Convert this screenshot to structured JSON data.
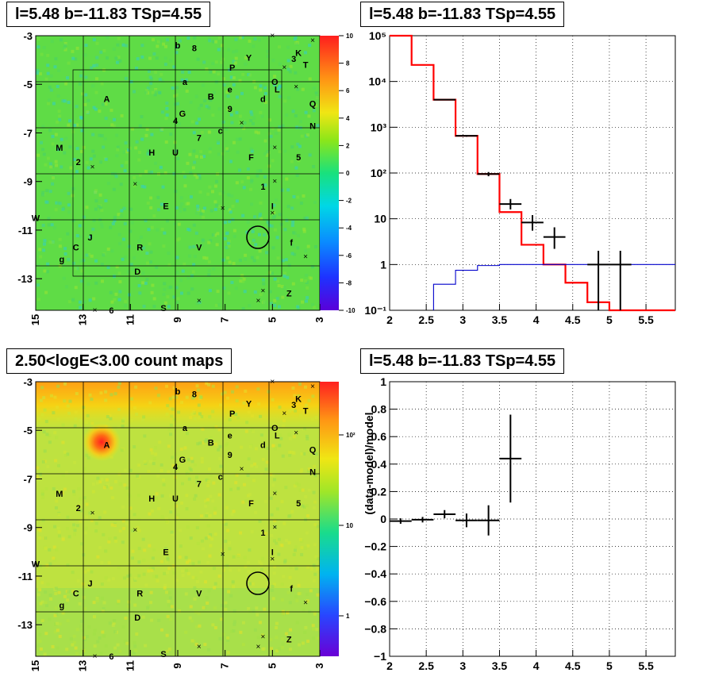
{
  "panels": {
    "top_left": {
      "title": "l=5.48 b=-11.83 TSp=4.55"
    },
    "top_right": {
      "title": "l=5.48 b=-11.83 TSp=4.55"
    },
    "bottom_left": {
      "title": "2.50<logE<3.00 count maps"
    },
    "bottom_right": {
      "title": "l=5.48 b=-11.83 TSp=4.55"
    }
  },
  "chart_data": [
    {
      "id": "residual_map",
      "type": "heatmap",
      "title": "l=5.48 b=-11.83 TSp=4.55",
      "x_ticks": [
        "15",
        "13",
        "11",
        "9",
        "7",
        "5",
        "3"
      ],
      "y_ticks": [
        "-3",
        "-5",
        "-7",
        "-9",
        "-11",
        "-13"
      ],
      "xlim": [
        15,
        3
      ],
      "ylim": [
        -14.3,
        -3
      ],
      "palette_ticks": [
        "10",
        "8",
        "6",
        "4",
        "2",
        "0",
        "-2",
        "-4",
        "-6",
        "-8",
        "-10"
      ],
      "zlim": [
        -10,
        10
      ],
      "source_labels": [
        {
          "t": "b",
          "l": 9.0,
          "b": -3.4
        },
        {
          "t": "8",
          "l": 8.3,
          "b": -3.5
        },
        {
          "t": "Y",
          "l": 6.0,
          "b": -3.9
        },
        {
          "t": "P",
          "l": 6.7,
          "b": -4.3
        },
        {
          "t": "K",
          "l": 3.9,
          "b": -3.7
        },
        {
          "t": "3",
          "l": 4.1,
          "b": -3.95
        },
        {
          "t": "T",
          "l": 3.6,
          "b": -4.2
        },
        {
          "t": "a",
          "l": 8.7,
          "b": -4.9
        },
        {
          "t": "O",
          "l": 4.9,
          "b": -4.9
        },
        {
          "t": "L",
          "l": 4.8,
          "b": -5.2
        },
        {
          "t": "e",
          "l": 6.8,
          "b": -5.2
        },
        {
          "t": "A",
          "l": 12.0,
          "b": -5.6
        },
        {
          "t": "B",
          "l": 7.6,
          "b": -5.5
        },
        {
          "t": "d",
          "l": 5.4,
          "b": -5.6
        },
        {
          "t": "Q",
          "l": 3.3,
          "b": -5.8
        },
        {
          "t": "G",
          "l": 8.8,
          "b": -6.2
        },
        {
          "t": "9",
          "l": 6.8,
          "b": -6.0
        },
        {
          "t": "4",
          "l": 9.1,
          "b": -6.5
        },
        {
          "t": "N",
          "l": 3.3,
          "b": -6.7
        },
        {
          "t": "c",
          "l": 7.2,
          "b": -6.9
        },
        {
          "t": "7",
          "l": 8.1,
          "b": -7.2
        },
        {
          "t": "M",
          "l": 14.0,
          "b": -7.6
        },
        {
          "t": "H",
          "l": 10.1,
          "b": -7.8
        },
        {
          "t": "U",
          "l": 9.1,
          "b": -7.8
        },
        {
          "t": "F",
          "l": 5.9,
          "b": -8.0
        },
        {
          "t": "5",
          "l": 3.9,
          "b": -8.0
        },
        {
          "t": "2",
          "l": 13.2,
          "b": -8.2
        },
        {
          "t": "1",
          "l": 5.4,
          "b": -9.2
        },
        {
          "t": "E",
          "l": 9.5,
          "b": -10.0
        },
        {
          "t": "I",
          "l": 5.0,
          "b": -10.0
        },
        {
          "t": "W",
          "l": 15.0,
          "b": -10.5
        },
        {
          "t": "J",
          "l": 12.7,
          "b": -11.3
        },
        {
          "t": "C",
          "l": 13.3,
          "b": -11.7
        },
        {
          "t": "R",
          "l": 10.6,
          "b": -11.7
        },
        {
          "t": "V",
          "l": 8.1,
          "b": -11.7
        },
        {
          "t": "f",
          "l": 4.2,
          "b": -11.5
        },
        {
          "t": "g",
          "l": 13.9,
          "b": -12.2
        },
        {
          "t": "D",
          "l": 10.7,
          "b": -12.7
        },
        {
          "t": "Z",
          "l": 4.3,
          "b": -13.6
        },
        {
          "t": "S",
          "l": 9.6,
          "b": -14.2
        },
        {
          "t": "6",
          "l": 11.8,
          "b": -14.3
        }
      ],
      "x_markers": [
        {
          "l": 5.0,
          "b": -3.0
        },
        {
          "l": 4.5,
          "b": -4.3
        },
        {
          "l": 4.0,
          "b": -5.1
        },
        {
          "l": 6.3,
          "b": -6.6
        },
        {
          "l": 4.9,
          "b": -7.6
        },
        {
          "l": 12.6,
          "b": -8.4
        },
        {
          "l": 4.9,
          "b": -9.0
        },
        {
          "l": 10.8,
          "b": -9.1
        },
        {
          "l": 7.1,
          "b": -10.1
        },
        {
          "l": 5.0,
          "b": -10.3
        },
        {
          "l": 3.6,
          "b": -12.1
        },
        {
          "l": 5.6,
          "b": -13.9
        },
        {
          "l": 8.1,
          "b": -13.9
        },
        {
          "l": 12.5,
          "b": -14.3
        },
        {
          "l": 5.4,
          "b": -13.5
        },
        {
          "l": 3.3,
          "b": -3.2
        }
      ],
      "circle": {
        "l": 5.48,
        "b": -11.83,
        "r": 0.5
      }
    },
    {
      "id": "spectrum",
      "type": "line",
      "title": "l=5.48 b=-11.83 TSp=4.55",
      "log_y": true,
      "xlim": [
        2,
        5.9
      ],
      "ylim": [
        0.1,
        100000
      ],
      "x_ticks": [
        2,
        2.5,
        3,
        3.5,
        4,
        4.5,
        5,
        5.5
      ],
      "x_tick_labels": [
        "2",
        "2.5",
        "3",
        "3.5",
        "4",
        "4.5",
        "5",
        "5.5"
      ],
      "y_ticks": [
        0.1,
        1,
        10,
        100,
        1000,
        10000,
        100000
      ],
      "y_tick_labels": [
        "10⁻¹",
        "1",
        "10",
        "10²",
        "10³",
        "10⁴",
        "10⁵"
      ],
      "grid": true,
      "series": [
        {
          "color": "#ff0000",
          "edges": [
            2.0,
            2.3,
            2.6,
            2.9,
            3.2,
            3.5,
            3.8,
            4.1,
            4.4,
            4.7,
            5.0,
            5.9
          ],
          "values": [
            100000,
            23000,
            4000,
            650,
            95,
            14,
            2.7,
            1.0,
            0.4,
            0.15,
            0.1
          ]
        },
        {
          "color": "#0000cc",
          "edges": [
            2.6,
            2.9,
            3.2,
            3.5,
            5.9
          ],
          "values": [
            0.37,
            0.75,
            0.95,
            1.0
          ]
        }
      ],
      "points": [
        {
          "x": 2.75,
          "y": 4000,
          "xerr": 0.15,
          "ylo": 3900,
          "yhi": 4100
        },
        {
          "x": 3.05,
          "y": 650,
          "xerr": 0.15,
          "ylo": 620,
          "yhi": 680
        },
        {
          "x": 3.35,
          "y": 95,
          "xerr": 0.15,
          "ylo": 85,
          "yhi": 105
        },
        {
          "x": 3.65,
          "y": 21,
          "xerr": 0.15,
          "ylo": 16,
          "yhi": 27
        },
        {
          "x": 3.95,
          "y": 8.3,
          "xerr": 0.15,
          "ylo": 5.5,
          "yhi": 12
        },
        {
          "x": 4.25,
          "y": 4.0,
          "xerr": 0.15,
          "ylo": 2.2,
          "yhi": 6.5
        },
        {
          "x": 4.85,
          "y": 1.0,
          "xerr": 0.15,
          "ylo": 0.1,
          "yhi": 2.0
        },
        {
          "x": 5.15,
          "y": 1.0,
          "xerr": 0.15,
          "ylo": 0.1,
          "yhi": 2.0
        }
      ]
    },
    {
      "id": "count_map",
      "type": "heatmap",
      "title": "2.50<logE<3.00 count maps",
      "x_ticks": [
        "15",
        "13",
        "11",
        "9",
        "7",
        "5",
        "3"
      ],
      "y_ticks": [
        "-3",
        "-5",
        "-7",
        "-9",
        "-11",
        "-13"
      ],
      "xlim": [
        15,
        3
      ],
      "ylim": [
        -14.3,
        -3
      ],
      "palette_ticks": [
        "10²",
        "10",
        "1"
      ],
      "log_z": true,
      "bright_source": {
        "l": 12.1,
        "b": -5.6
      }
    },
    {
      "id": "residuals",
      "type": "scatter",
      "title": "l=5.48 b=-11.83 TSp=4.55",
      "ylabel": "(data-model)/model",
      "xlim": [
        2,
        5.9
      ],
      "ylim": [
        -1,
        1
      ],
      "x_ticks": [
        2,
        2.5,
        3,
        3.5,
        4,
        4.5,
        5,
        5.5
      ],
      "x_tick_labels": [
        "2",
        "2.5",
        "3",
        "3.5",
        "4",
        "4.5",
        "5",
        "5.5"
      ],
      "y_ticks": [
        -1,
        -0.8,
        -0.6,
        -0.4,
        -0.2,
        0,
        0.2,
        0.4,
        0.6,
        0.8,
        1
      ],
      "y_tick_labels": [
        "−1",
        "−0.8",
        "−0.6",
        "−0.4",
        "−0.2",
        "0",
        "0.2",
        "0.4",
        "0.6",
        "0.8",
        "1"
      ],
      "grid": true,
      "points": [
        {
          "x": 2.15,
          "y": -0.015,
          "xerr": 0.15,
          "err": 0.02
        },
        {
          "x": 2.45,
          "y": -0.005,
          "xerr": 0.15,
          "err": 0.02
        },
        {
          "x": 2.75,
          "y": 0.035,
          "xerr": 0.15,
          "err": 0.03
        },
        {
          "x": 3.05,
          "y": -0.01,
          "xerr": 0.15,
          "err": 0.05
        },
        {
          "x": 3.35,
          "y": -0.01,
          "xerr": 0.15,
          "err": 0.11
        },
        {
          "x": 3.65,
          "y": 0.44,
          "xerr": 0.15,
          "err": 0.32
        }
      ]
    }
  ]
}
